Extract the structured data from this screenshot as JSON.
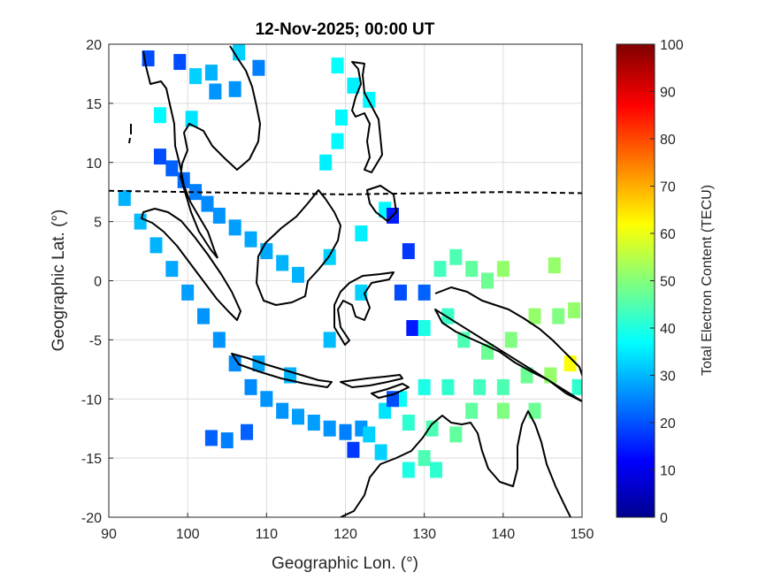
{
  "figure": {
    "title": "12-Nov-2025; 00:00 UT",
    "xlabel": "Geographic Lon. (°)",
    "ylabel": "Geographic Lat. (°)"
  },
  "axes": {
    "xlim": [
      90,
      150
    ],
    "ylim": [
      -20,
      20
    ],
    "xticks": [
      90,
      100,
      110,
      120,
      130,
      140,
      150
    ],
    "yticks": [
      -20,
      -15,
      -10,
      -5,
      0,
      5,
      10,
      15,
      20
    ],
    "grid": true
  },
  "colorbar": {
    "label": "Total Electron Content (TECU)",
    "range": [
      0,
      100
    ],
    "ticks": [
      0,
      10,
      20,
      30,
      40,
      50,
      60,
      70,
      80,
      90,
      100
    ],
    "colormap": "jet"
  },
  "chart_data": {
    "type": "heatmap",
    "title": "12-Nov-2025; 00:00 UT",
    "xlabel": "Geographic Lon. (°)",
    "ylabel": "Geographic Lat. (°)",
    "xlim": [
      90,
      150
    ],
    "ylim": [
      -20,
      20
    ],
    "value_label": "Total Electron Content (TECU)",
    "value_range": [
      0,
      100
    ],
    "magnetic_equator": [
      [
        90,
        7.6
      ],
      [
        100,
        7.5
      ],
      [
        110,
        7.4
      ],
      [
        120,
        7.3
      ],
      [
        130,
        7.4
      ],
      [
        140,
        7.5
      ],
      [
        150,
        7.4
      ]
    ],
    "points": [
      {
        "lon": 95,
        "lat": 18.8,
        "tec": 20
      },
      {
        "lon": 99,
        "lat": 18.5,
        "tec": 20
      },
      {
        "lon": 101,
        "lat": 17.3,
        "tec": 33
      },
      {
        "lon": 103,
        "lat": 17.6,
        "tec": 30
      },
      {
        "lon": 103.5,
        "lat": 16,
        "tec": 27
      },
      {
        "lon": 106.5,
        "lat": 19.3,
        "tec": 33
      },
      {
        "lon": 109,
        "lat": 18,
        "tec": 25
      },
      {
        "lon": 106,
        "lat": 16.2,
        "tec": 27
      },
      {
        "lon": 96.5,
        "lat": 14,
        "tec": 37
      },
      {
        "lon": 100.5,
        "lat": 13.7,
        "tec": 35
      },
      {
        "lon": 119,
        "lat": 18.2,
        "tec": 38
      },
      {
        "lon": 121,
        "lat": 16.5,
        "tec": 36
      },
      {
        "lon": 123,
        "lat": 15.3,
        "tec": 37
      },
      {
        "lon": 119.5,
        "lat": 13.8,
        "tec": 37
      },
      {
        "lon": 117.5,
        "lat": 10,
        "tec": 36
      },
      {
        "lon": 119,
        "lat": 11.8,
        "tec": 37
      },
      {
        "lon": 96.5,
        "lat": 10.5,
        "tec": 20
      },
      {
        "lon": 98,
        "lat": 9.5,
        "tec": 22
      },
      {
        "lon": 99.5,
        "lat": 8.5,
        "tec": 23
      },
      {
        "lon": 101,
        "lat": 7.5,
        "tec": 25
      },
      {
        "lon": 102.5,
        "lat": 6.5,
        "tec": 26
      },
      {
        "lon": 104,
        "lat": 5.5,
        "tec": 27
      },
      {
        "lon": 106,
        "lat": 4.5,
        "tec": 28
      },
      {
        "lon": 108,
        "lat": 3.5,
        "tec": 29
      },
      {
        "lon": 110,
        "lat": 2.5,
        "tec": 29
      },
      {
        "lon": 112,
        "lat": 1.5,
        "tec": 30
      },
      {
        "lon": 114,
        "lat": 0.5,
        "tec": 30
      },
      {
        "lon": 92,
        "lat": 7,
        "tec": 30
      },
      {
        "lon": 94,
        "lat": 5,
        "tec": 31
      },
      {
        "lon": 96,
        "lat": 3,
        "tec": 30
      },
      {
        "lon": 98,
        "lat": 1,
        "tec": 29
      },
      {
        "lon": 100,
        "lat": -1,
        "tec": 28
      },
      {
        "lon": 102,
        "lat": -3,
        "tec": 27
      },
      {
        "lon": 104,
        "lat": -5,
        "tec": 27
      },
      {
        "lon": 106,
        "lat": -7,
        "tec": 26
      },
      {
        "lon": 108,
        "lat": -9,
        "tec": 26
      },
      {
        "lon": 110,
        "lat": -10,
        "tec": 27
      },
      {
        "lon": 112,
        "lat": -11,
        "tec": 27
      },
      {
        "lon": 114,
        "lat": -11.5,
        "tec": 28
      },
      {
        "lon": 116,
        "lat": -12,
        "tec": 28
      },
      {
        "lon": 118,
        "lat": -12.5,
        "tec": 27
      },
      {
        "lon": 120,
        "lat": -12.8,
        "tec": 25
      },
      {
        "lon": 122,
        "lat": -12.5,
        "tec": 27
      },
      {
        "lon": 103,
        "lat": -13.3,
        "tec": 22
      },
      {
        "lon": 105,
        "lat": -13.5,
        "tec": 25
      },
      {
        "lon": 107.5,
        "lat": -12.8,
        "tec": 22
      },
      {
        "lon": 109,
        "lat": -7,
        "tec": 29
      },
      {
        "lon": 113,
        "lat": -8,
        "tec": 30
      },
      {
        "lon": 118,
        "lat": -5,
        "tec": 31
      },
      {
        "lon": 122,
        "lat": -1,
        "tec": 33
      },
      {
        "lon": 118,
        "lat": 2,
        "tec": 33
      },
      {
        "lon": 122,
        "lat": 4,
        "tec": 36
      },
      {
        "lon": 125,
        "lat": 6,
        "tec": 37
      },
      {
        "lon": 126,
        "lat": 5.5,
        "tec": 15
      },
      {
        "lon": 128,
        "lat": 2.5,
        "tec": 18
      },
      {
        "lon": 127,
        "lat": -1,
        "tec": 20
      },
      {
        "lon": 128.5,
        "lat": -4,
        "tec": 15
      },
      {
        "lon": 130,
        "lat": -1,
        "tec": 22
      },
      {
        "lon": 132,
        "lat": 1,
        "tec": 44
      },
      {
        "lon": 134,
        "lat": 2,
        "tec": 45
      },
      {
        "lon": 136,
        "lat": 1,
        "tec": 47
      },
      {
        "lon": 138,
        "lat": 0,
        "tec": 48
      },
      {
        "lon": 140,
        "lat": 1,
        "tec": 52
      },
      {
        "lon": 146.5,
        "lat": 1.3,
        "tec": 52
      },
      {
        "lon": 130,
        "lat": -4,
        "tec": 40
      },
      {
        "lon": 133,
        "lat": -3,
        "tec": 43
      },
      {
        "lon": 135,
        "lat": -5,
        "tec": 45
      },
      {
        "lon": 138,
        "lat": -6,
        "tec": 48
      },
      {
        "lon": 141,
        "lat": -5,
        "tec": 50
      },
      {
        "lon": 144,
        "lat": -3,
        "tec": 52
      },
      {
        "lon": 147,
        "lat": -3,
        "tec": 50
      },
      {
        "lon": 149,
        "lat": -2.5,
        "tec": 52
      },
      {
        "lon": 148.5,
        "lat": -7,
        "tec": 62
      },
      {
        "lon": 146,
        "lat": -8,
        "tec": 52
      },
      {
        "lon": 143,
        "lat": -8,
        "tec": 48
      },
      {
        "lon": 140,
        "lat": -9,
        "tec": 45
      },
      {
        "lon": 137,
        "lat": -9,
        "tec": 44
      },
      {
        "lon": 133,
        "lat": -9,
        "tec": 42
      },
      {
        "lon": 130,
        "lat": -9,
        "tec": 40
      },
      {
        "lon": 127,
        "lat": -10,
        "tec": 38
      },
      {
        "lon": 125,
        "lat": -11,
        "tec": 35
      },
      {
        "lon": 123,
        "lat": -13,
        "tec": 33
      },
      {
        "lon": 124.5,
        "lat": -14.5,
        "tec": 33
      },
      {
        "lon": 128,
        "lat": -12,
        "tec": 42
      },
      {
        "lon": 131,
        "lat": -12.5,
        "tec": 45
      },
      {
        "lon": 134,
        "lat": -13,
        "tec": 47
      },
      {
        "lon": 130,
        "lat": -15,
        "tec": 45
      },
      {
        "lon": 128,
        "lat": -16,
        "tec": 40
      },
      {
        "lon": 131.5,
        "lat": -16,
        "tec": 42
      },
      {
        "lon": 136,
        "lat": -11,
        "tec": 47
      },
      {
        "lon": 140,
        "lat": -11,
        "tec": 50
      },
      {
        "lon": 144,
        "lat": -11,
        "tec": 48
      },
      {
        "lon": 149.5,
        "lat": -9,
        "tec": 42
      },
      {
        "lon": 121,
        "lat": -14.3,
        "tec": 18
      },
      {
        "lon": 126,
        "lat": -10,
        "tec": 20
      }
    ]
  }
}
